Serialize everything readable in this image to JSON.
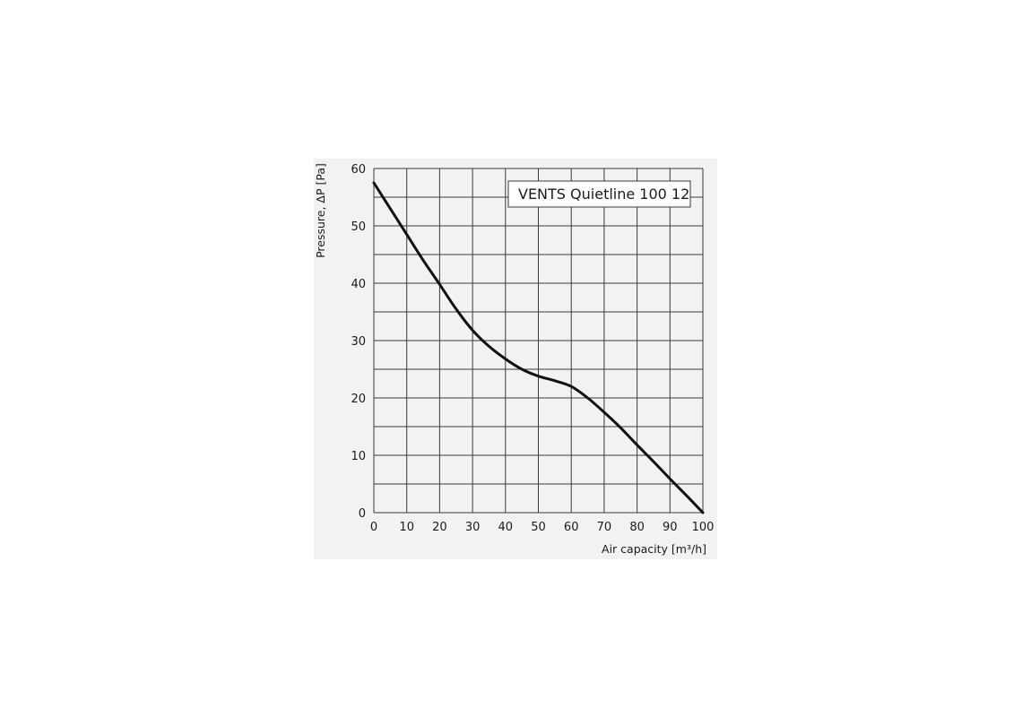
{
  "chart_data": {
    "type": "line",
    "title": "",
    "xlabel": "Air capacity [m³/h]",
    "ylabel": "Pressure, ΔP [Pa]",
    "xlim": [
      0,
      100
    ],
    "ylim": [
      0,
      60
    ],
    "x_ticks": [
      0,
      10,
      20,
      30,
      40,
      50,
      60,
      70,
      80,
      90,
      100
    ],
    "y_ticks": [
      0,
      10,
      20,
      30,
      40,
      50,
      60
    ],
    "grid": true,
    "grid_minor_y": 5,
    "legend_position": "top-right",
    "series": [
      {
        "name": "VENTS Quietline 100 12",
        "color": "#111111",
        "x": [
          0,
          5,
          10,
          15,
          20,
          25,
          30,
          35,
          40,
          45,
          50,
          55,
          60,
          65,
          70,
          75,
          80,
          85,
          90,
          95,
          100
        ],
        "y": [
          57.5,
          53,
          48.5,
          44,
          39.8,
          35.5,
          31.8,
          29,
          26.8,
          25,
          23.8,
          23,
          22,
          20,
          17.5,
          14.8,
          11.8,
          8.9,
          5.9,
          3,
          0
        ]
      }
    ]
  }
}
